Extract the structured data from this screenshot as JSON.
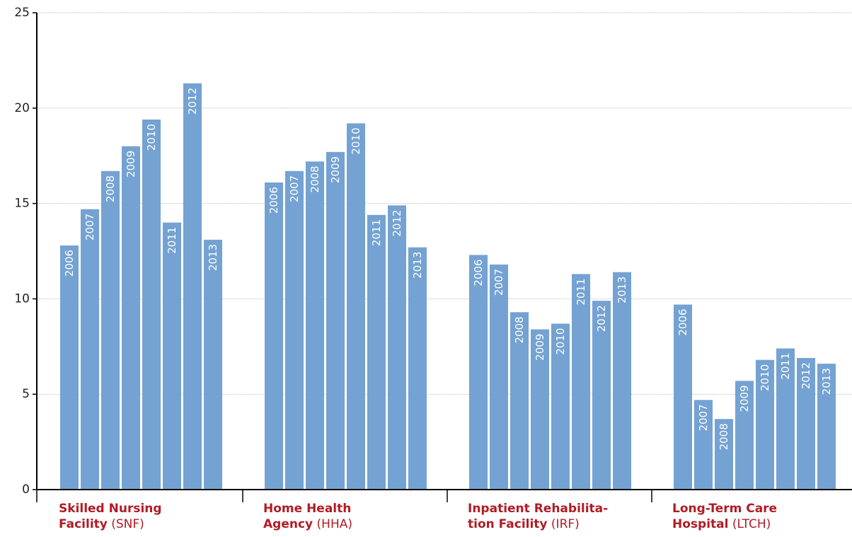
{
  "chart_data": {
    "type": "bar",
    "title": "",
    "xlabel": "",
    "ylabel": "",
    "ylim": [
      0,
      25
    ],
    "yticks": [
      0,
      5,
      10,
      15,
      20,
      25
    ],
    "grid": true,
    "colors": {
      "bar": "#74a2d2",
      "category_text": "#b01c24",
      "grid": "#bbbbbb",
      "axis": "#000000"
    },
    "groups": [
      {
        "name_bold": "Skilled Nursing Facility",
        "name_line1": "Skilled Nursing",
        "name_line2": "Facility",
        "abbr": "(SNF)",
        "bars": [
          {
            "year": "2006",
            "value": 12.8
          },
          {
            "year": "2007",
            "value": 14.7
          },
          {
            "year": "2008",
            "value": 16.7
          },
          {
            "year": "2009",
            "value": 18.0
          },
          {
            "year": "2010",
            "value": 19.4
          },
          {
            "year": "2011",
            "value": 14.0
          },
          {
            "year": "2012",
            "value": 21.3
          },
          {
            "year": "2013",
            "value": 13.1
          }
        ]
      },
      {
        "name_line1": "Home Health",
        "name_line2": "Agency",
        "abbr": "(HHA)",
        "bars": [
          {
            "year": "2006",
            "value": 16.1
          },
          {
            "year": "2007",
            "value": 16.7
          },
          {
            "year": "2008",
            "value": 17.2
          },
          {
            "year": "2009",
            "value": 17.7
          },
          {
            "year": "2010",
            "value": 19.2
          },
          {
            "year": "2011",
            "value": 14.4
          },
          {
            "year": "2012",
            "value": 14.9
          },
          {
            "year": "2013",
            "value": 12.7
          }
        ]
      },
      {
        "name_line1": "Inpatient  Rehabilita-",
        "name_line2": "tion Facility",
        "abbr": "(IRF)",
        "bars": [
          {
            "year": "2006",
            "value": 12.3
          },
          {
            "year": "2007",
            "value": 11.8
          },
          {
            "year": "2008",
            "value": 9.3
          },
          {
            "year": "2009",
            "value": 8.4
          },
          {
            "year": "2010",
            "value": 8.7
          },
          {
            "year": "2011",
            "value": 11.3
          },
          {
            "year": "2012",
            "value": 9.9
          },
          {
            "year": "2013",
            "value": 11.4
          }
        ]
      },
      {
        "name_line1": "Long-Term Care",
        "name_line2": "Hospital",
        "abbr": "(LTCH)",
        "bars": [
          {
            "year": "2006",
            "value": 9.7
          },
          {
            "year": "2007",
            "value": 4.7
          },
          {
            "year": "2008",
            "value": 3.7
          },
          {
            "year": "2009",
            "value": 5.7
          },
          {
            "year": "2010",
            "value": 6.8
          },
          {
            "year": "2011",
            "value": 7.4
          },
          {
            "year": "2012",
            "value": 6.9
          },
          {
            "year": "2013",
            "value": 6.6
          }
        ]
      }
    ]
  }
}
